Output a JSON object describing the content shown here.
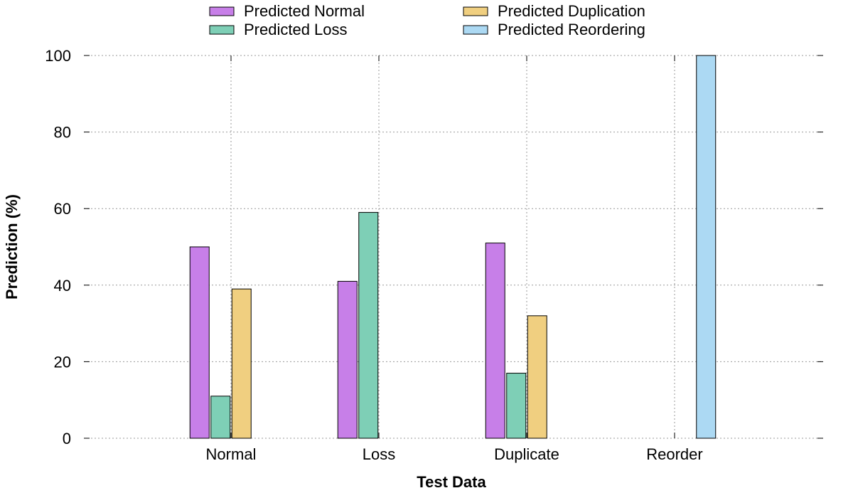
{
  "chart_data": {
    "type": "bar",
    "title": "",
    "xlabel": "Test Data",
    "ylabel": "Prediction (%)",
    "categories": [
      "Normal",
      "Loss",
      "Duplicate",
      "Reorder"
    ],
    "ylim": [
      0,
      100
    ],
    "yticks": [
      0,
      20,
      40,
      60,
      80,
      100
    ],
    "grid": true,
    "legend_position": "top",
    "series": [
      {
        "name": "Predicted Normal",
        "color": "#c77fe8",
        "values": [
          50,
          41,
          51,
          0
        ]
      },
      {
        "name": "Predicted Loss",
        "color": "#7ecfb6",
        "values": [
          11,
          59,
          17,
          0
        ]
      },
      {
        "name": "Predicted Duplication",
        "color": "#f0cf80",
        "values": [
          39,
          0,
          32,
          0
        ]
      },
      {
        "name": "Predicted Reordering",
        "color": "#acd9f3",
        "values": [
          0,
          0,
          0,
          100
        ]
      }
    ]
  }
}
